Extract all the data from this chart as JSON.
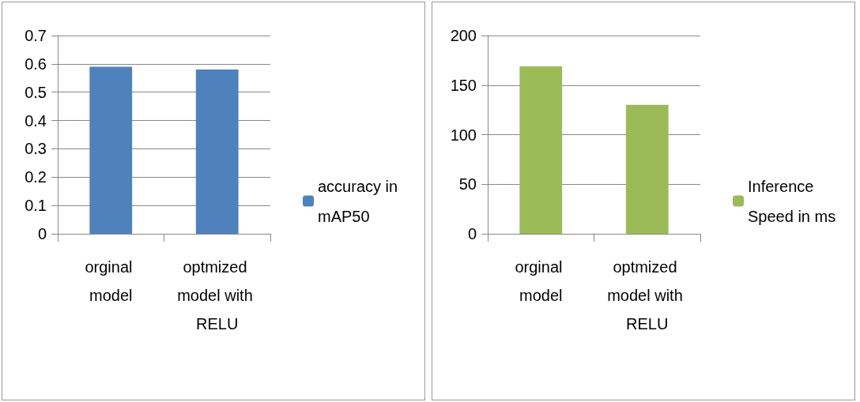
{
  "chart_data": [
    {
      "type": "bar",
      "categories": [
        "orginal model",
        "optmized model with RELU"
      ],
      "series": [
        {
          "name": "accuracy in mAP50",
          "color": "#4f81bd",
          "values": [
            0.59,
            0.58
          ]
        }
      ],
      "ylim": [
        0,
        0.7
      ],
      "yticks": [
        0,
        0.1,
        0.2,
        0.3,
        0.4,
        0.5,
        0.6,
        0.7
      ],
      "grid": "y",
      "legend": "right"
    },
    {
      "type": "bar",
      "categories": [
        "orginal model",
        "optmized model with RELU"
      ],
      "series": [
        {
          "name": "Inference Speed in ms",
          "color": "#9bbb59",
          "values": [
            169,
            130
          ]
        }
      ],
      "ylim": [
        0,
        200
      ],
      "yticks": [
        0,
        50,
        100,
        150,
        200
      ],
      "grid": "y",
      "legend": "right"
    }
  ]
}
